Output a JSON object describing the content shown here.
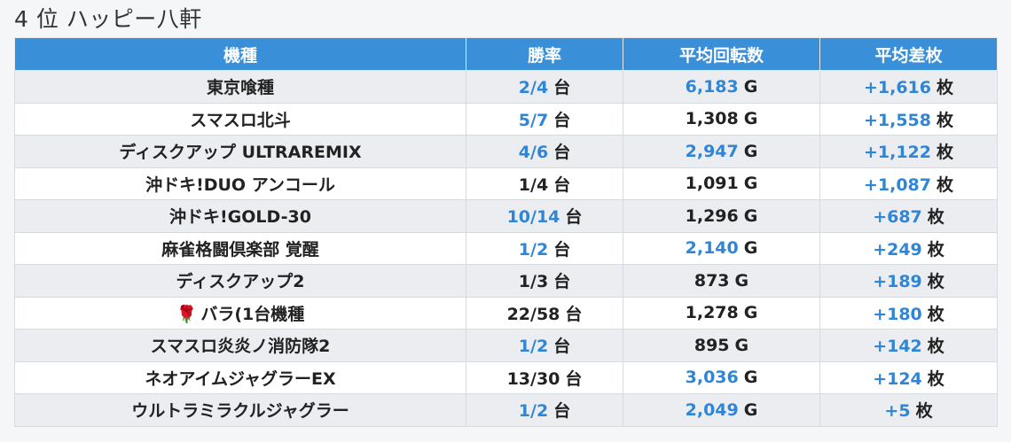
{
  "title": "4 位 ハッピー八軒",
  "table": {
    "headers": [
      "機種",
      "勝率",
      "平均回転数",
      "平均差枚"
    ],
    "rows": [
      {
        "model": "東京喰種",
        "model_prefix": "",
        "win_rate": "2/4",
        "win_unit": "台",
        "win_hl": true,
        "spins": "6,183",
        "spins_unit": "G",
        "spins_hl": true,
        "diff": "+1,616",
        "diff_unit": "枚",
        "diff_hl": true
      },
      {
        "model": "スマスロ北斗",
        "model_prefix": "",
        "win_rate": "5/7",
        "win_unit": "台",
        "win_hl": true,
        "spins": "1,308",
        "spins_unit": "G",
        "spins_hl": false,
        "diff": "+1,558",
        "diff_unit": "枚",
        "diff_hl": true
      },
      {
        "model": "ディスクアップ ULTRAREMIX",
        "model_prefix": "",
        "win_rate": "4/6",
        "win_unit": "台",
        "win_hl": true,
        "spins": "2,947",
        "spins_unit": "G",
        "spins_hl": true,
        "diff": "+1,122",
        "diff_unit": "枚",
        "diff_hl": true
      },
      {
        "model": "沖ドキ!DUO アンコール",
        "model_prefix": "",
        "win_rate": "1/4",
        "win_unit": "台",
        "win_hl": false,
        "spins": "1,091",
        "spins_unit": "G",
        "spins_hl": false,
        "diff": "+1,087",
        "diff_unit": "枚",
        "diff_hl": true
      },
      {
        "model": "沖ドキ!GOLD-30",
        "model_prefix": "",
        "win_rate": "10/14",
        "win_unit": "台",
        "win_hl": true,
        "spins": "1,296",
        "spins_unit": "G",
        "spins_hl": false,
        "diff": "+687",
        "diff_unit": "枚",
        "diff_hl": true
      },
      {
        "model": "麻雀格闘倶楽部 覚醒",
        "model_prefix": "",
        "win_rate": "1/2",
        "win_unit": "台",
        "win_hl": true,
        "spins": "2,140",
        "spins_unit": "G",
        "spins_hl": true,
        "diff": "+249",
        "diff_unit": "枚",
        "diff_hl": true
      },
      {
        "model": "ディスクアップ2",
        "model_prefix": "",
        "win_rate": "1/3",
        "win_unit": "台",
        "win_hl": false,
        "spins": "873",
        "spins_unit": "G",
        "spins_hl": false,
        "diff": "+189",
        "diff_unit": "枚",
        "diff_hl": true
      },
      {
        "model": "バラ(1台機種",
        "model_prefix": "🌹",
        "win_rate": "22/58",
        "win_unit": "台",
        "win_hl": false,
        "spins": "1,278",
        "spins_unit": "G",
        "spins_hl": false,
        "diff": "+180",
        "diff_unit": "枚",
        "diff_hl": true
      },
      {
        "model": "スマスロ炎炎ノ消防隊2",
        "model_prefix": "",
        "win_rate": "1/2",
        "win_unit": "台",
        "win_hl": true,
        "spins": "895",
        "spins_unit": "G",
        "spins_hl": false,
        "diff": "+142",
        "diff_unit": "枚",
        "diff_hl": true
      },
      {
        "model": "ネオアイムジャグラーEX",
        "model_prefix": "",
        "win_rate": "13/30",
        "win_unit": "台",
        "win_hl": false,
        "spins": "3,036",
        "spins_unit": "G",
        "spins_hl": true,
        "diff": "+124",
        "diff_unit": "枚",
        "diff_hl": true
      },
      {
        "model": "ウルトラミラクルジャグラー",
        "model_prefix": "",
        "win_rate": "1/2",
        "win_unit": "台",
        "win_hl": true,
        "spins": "2,049",
        "spins_unit": "G",
        "spins_hl": true,
        "diff": "+5",
        "diff_unit": "枚",
        "diff_hl": true
      }
    ]
  }
}
